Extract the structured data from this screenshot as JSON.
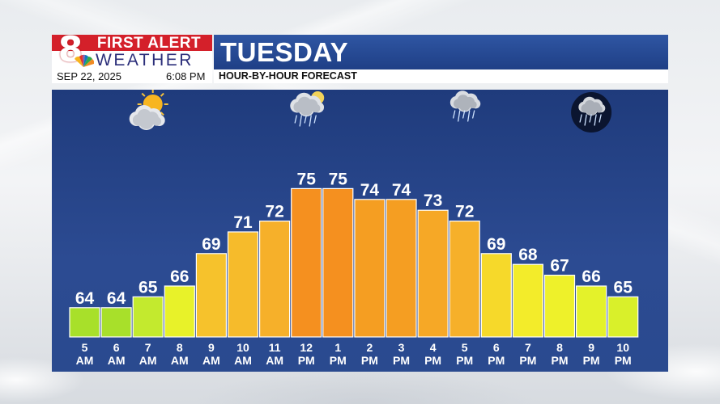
{
  "header": {
    "brand_number": "8",
    "brand_line1": "FIRST ALERT",
    "brand_line2": "WEATHER",
    "title": "TUESDAY",
    "date": "SEP 22, 2025",
    "time": "6:08 PM",
    "caption": "HOUR-BY-HOUR FORECAST"
  },
  "colors": {
    "brand_red": "#d4202a",
    "title_blue": "#2a4e9b",
    "panel_blue": "#24438a"
  },
  "icons": [
    {
      "hour_index": 2,
      "name": "partly-sunny-icon"
    },
    {
      "hour_index": 7,
      "name": "showers-icon"
    },
    {
      "hour_index": 12,
      "name": "rain-icon"
    },
    {
      "hour_index": 16,
      "name": "night-rain-icon"
    }
  ],
  "chart_data": {
    "type": "bar",
    "title": "HOUR-BY-HOUR FORECAST",
    "categories": [
      [
        "5",
        "AM"
      ],
      [
        "6",
        "AM"
      ],
      [
        "7",
        "AM"
      ],
      [
        "8",
        "AM"
      ],
      [
        "9",
        "AM"
      ],
      [
        "10",
        "AM"
      ],
      [
        "11",
        "AM"
      ],
      [
        "12",
        "PM"
      ],
      [
        "1",
        "PM"
      ],
      [
        "2",
        "PM"
      ],
      [
        "3",
        "PM"
      ],
      [
        "4",
        "PM"
      ],
      [
        "5",
        "PM"
      ],
      [
        "6",
        "PM"
      ],
      [
        "7",
        "PM"
      ],
      [
        "8",
        "PM"
      ],
      [
        "9",
        "PM"
      ],
      [
        "10",
        "PM"
      ]
    ],
    "values": [
      64,
      64,
      65,
      66,
      69,
      71,
      72,
      75,
      75,
      74,
      74,
      73,
      72,
      69,
      68,
      67,
      66,
      65
    ],
    "value_labels": [
      "64",
      "64",
      "65",
      "66",
      "69",
      "71",
      "72",
      "75",
      "75",
      "74",
      "74",
      "73",
      "72",
      "69",
      "68",
      "67",
      "66",
      "65"
    ],
    "xlabel": "",
    "ylabel": "",
    "ylim": [
      60,
      76
    ],
    "grid": false,
    "legend": "none",
    "bar_colors": [
      "#a8e02a",
      "#a8e02a",
      "#c3ea2e",
      "#e8f229",
      "#f6c22c",
      "#f6bb2b",
      "#f6b02a",
      "#f5901f",
      "#f5901f",
      "#f59e22",
      "#f59e22",
      "#f6a826",
      "#f6b02a",
      "#f6d92a",
      "#f3ec2a",
      "#eef12a",
      "#e4f22a",
      "#d9f02a"
    ]
  }
}
